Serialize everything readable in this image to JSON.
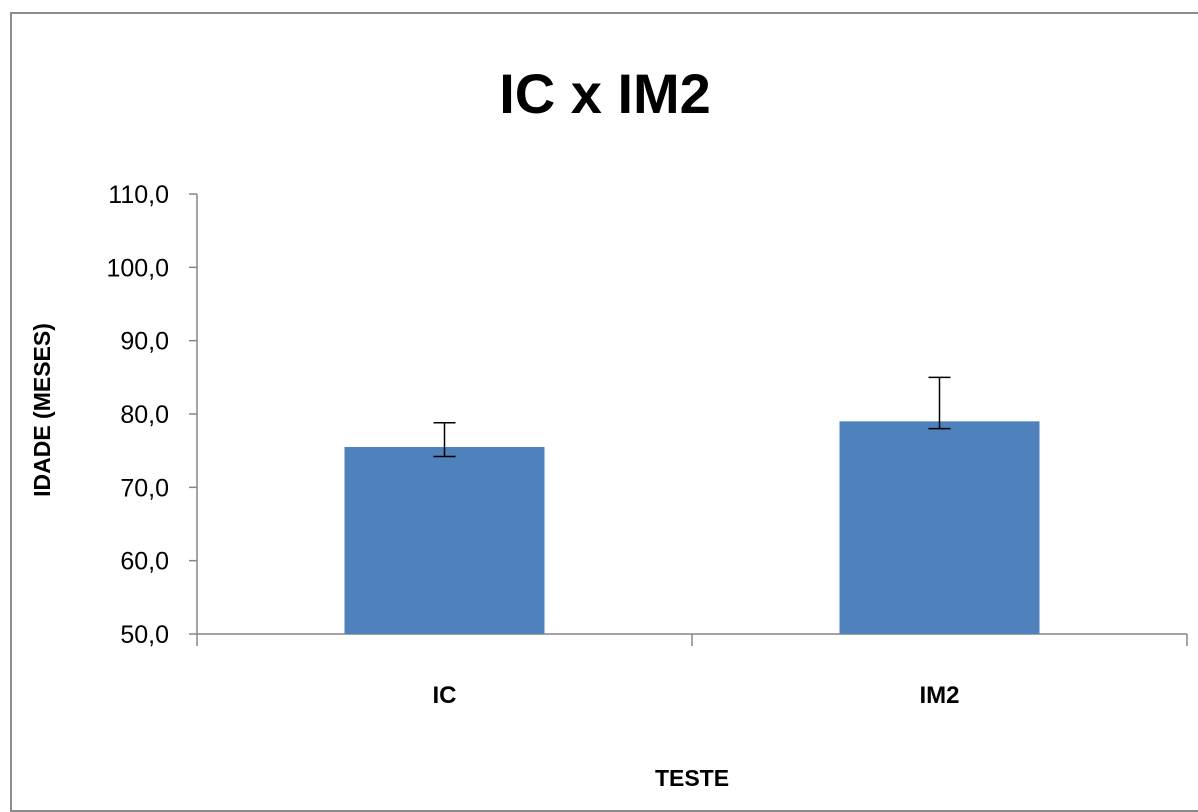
{
  "chart_data": {
    "type": "bar",
    "title": "IC x IM2",
    "xlabel": "TESTE",
    "ylabel": "IDADE (MESES)",
    "categories": [
      "IC",
      "IM2"
    ],
    "values": [
      75.5,
      79.0
    ],
    "error_bars": [
      {
        "low": 74.2,
        "high": 78.8
      },
      {
        "low": 78.0,
        "high": 85.0
      }
    ],
    "ylim": [
      50,
      110
    ],
    "y_ticks": [
      "50,0",
      "60,0",
      "70,0",
      "80,0",
      "90,0",
      "100,0",
      "110,0"
    ],
    "bar_color": "#4f81bd",
    "grid": false,
    "legend": "none"
  }
}
